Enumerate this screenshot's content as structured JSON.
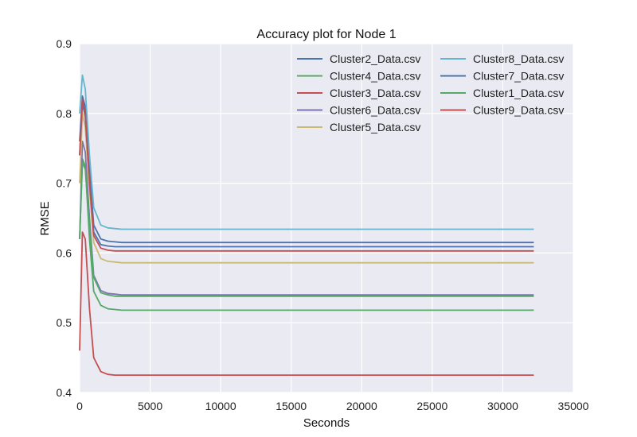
{
  "chart_data": {
    "type": "line",
    "title": "Accuracy plot for Node 1",
    "xlabel": "Seconds",
    "ylabel": "RMSE",
    "xlim": [
      0,
      35000
    ],
    "ylim": [
      0.4,
      0.9
    ],
    "x_ticks": [
      "0",
      "5000",
      "10000",
      "15000",
      "20000",
      "25000",
      "30000",
      "35000"
    ],
    "y_ticks": [
      "0.4",
      "0.5",
      "0.6",
      "0.7",
      "0.8",
      "0.9"
    ],
    "grid": true,
    "legend_position": "top-right",
    "x": [
      0,
      200,
      400,
      700,
      1000,
      1500,
      2000,
      2500,
      3000,
      32200
    ],
    "series": [
      {
        "name": "Cluster2_Data.csv",
        "color": "#4c72b0",
        "values": [
          0.76,
          0.825,
          0.81,
          0.72,
          0.64,
          0.62,
          0.617,
          0.616,
          0.615,
          0.615
        ]
      },
      {
        "name": "Cluster4_Data.csv",
        "color": "#55a868",
        "values": [
          0.62,
          0.735,
          0.725,
          0.62,
          0.545,
          0.525,
          0.52,
          0.519,
          0.518,
          0.518
        ]
      },
      {
        "name": "Cluster3_Data.csv",
        "color": "#c44e52",
        "values": [
          0.46,
          0.63,
          0.62,
          0.52,
          0.45,
          0.43,
          0.426,
          0.425,
          0.425,
          0.425
        ]
      },
      {
        "name": "Cluster6_Data.csv",
        "color": "#8172b2",
        "values": [
          0.62,
          0.76,
          0.745,
          0.65,
          0.568,
          0.546,
          0.542,
          0.541,
          0.54,
          0.54
        ]
      },
      {
        "name": "Cluster5_Data.csv",
        "color": "#ccb974",
        "values": [
          0.7,
          0.8,
          0.78,
          0.69,
          0.615,
          0.592,
          0.588,
          0.587,
          0.586,
          0.586
        ]
      },
      {
        "name": "Cluster8_Data.csv",
        "color": "#64b5cd",
        "values": [
          0.8,
          0.855,
          0.835,
          0.74,
          0.665,
          0.64,
          0.636,
          0.635,
          0.634,
          0.634
        ]
      },
      {
        "name": "Cluster7_Data.csv",
        "color": "#4c72b0",
        "values": [
          0.74,
          0.815,
          0.795,
          0.705,
          0.63,
          0.612,
          0.61,
          0.609,
          0.609,
          0.609
        ]
      },
      {
        "name": "Cluster1_Data.csv",
        "color": "#55a868",
        "values": [
          0.62,
          0.73,
          0.72,
          0.64,
          0.565,
          0.543,
          0.54,
          0.538,
          0.538,
          0.538
        ]
      },
      {
        "name": "Cluster9_Data.csv",
        "color": "#c44e52",
        "values": [
          0.74,
          0.82,
          0.8,
          0.7,
          0.625,
          0.607,
          0.604,
          0.603,
          0.603,
          0.603
        ]
      }
    ]
  },
  "colors": {
    "plot_background": "#eaeaf2",
    "grid": "#ffffff"
  }
}
